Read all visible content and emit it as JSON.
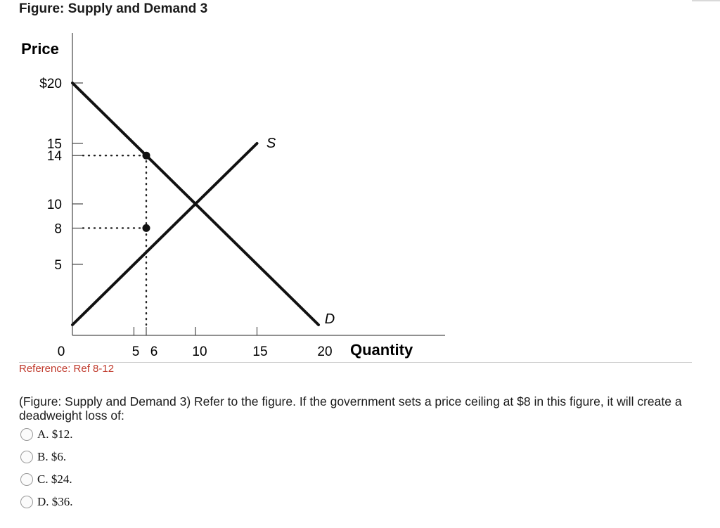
{
  "figure_title": "Figure: Supply and Demand 3",
  "reference": "Reference: Ref 8-12",
  "question": "(Figure: Supply and Demand 3) Refer to the figure. If the government sets a price ceiling at $8 in this figure, it will create a deadweight loss of:",
  "choices": [
    {
      "label": "A. $12."
    },
    {
      "label": "B. $6."
    },
    {
      "label": "C. $24."
    },
    {
      "label": "D. $36."
    }
  ],
  "chart_data": {
    "type": "line",
    "xlabel": "Quantity",
    "ylabel": "Price",
    "xlim": [
      0,
      20
    ],
    "ylim": [
      0,
      20
    ],
    "x_ticks": [
      {
        "value": 0,
        "label": "0"
      },
      {
        "value": 5,
        "label": "5"
      },
      {
        "value": 6,
        "label": "6"
      },
      {
        "value": 10,
        "label": "10"
      },
      {
        "value": 15,
        "label": "15"
      },
      {
        "value": 20,
        "label": "20"
      }
    ],
    "y_ticks": [
      {
        "value": 20,
        "label": "$20"
      },
      {
        "value": 15,
        "label": "15"
      },
      {
        "value": 14,
        "label": "14"
      },
      {
        "value": 10,
        "label": "10"
      },
      {
        "value": 8,
        "label": "8"
      },
      {
        "value": 5,
        "label": "5"
      }
    ],
    "series": [
      {
        "name": "S",
        "x": [
          0,
          15
        ],
        "y": [
          0,
          15
        ]
      },
      {
        "name": "D",
        "x": [
          0,
          20
        ],
        "y": [
          20,
          0
        ]
      }
    ],
    "points": [
      {
        "x": 6,
        "y": 14
      },
      {
        "x": 6,
        "y": 8
      }
    ],
    "guides": [
      {
        "from": [
          0,
          14
        ],
        "to": [
          6,
          14
        ]
      },
      {
        "from": [
          0,
          8
        ],
        "to": [
          6,
          8
        ]
      },
      {
        "from": [
          6,
          14
        ],
        "to": [
          6,
          0
        ]
      }
    ],
    "grid": false
  }
}
